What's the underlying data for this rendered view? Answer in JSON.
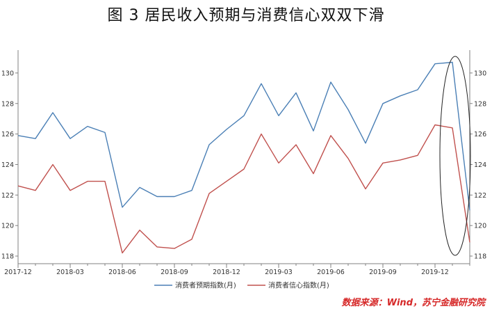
{
  "title": "图 3    居民收入预期与消费信心双双下滑",
  "source": "数据来源：Wind，苏宁金融研究院",
  "colors": {
    "expectation": "#4a7fb5",
    "confidence": "#c0504d",
    "axis": "#808080",
    "ellipse": "#222222"
  },
  "chart_data": {
    "type": "line",
    "title": "",
    "xlabel": "",
    "ylabel": "",
    "x": [
      "2017-12",
      "2018-01",
      "2018-02",
      "2018-03",
      "2018-04",
      "2018-05",
      "2018-06",
      "2018-07",
      "2018-08",
      "2018-09",
      "2018-10",
      "2018-11",
      "2018-12",
      "2019-01",
      "2019-02",
      "2019-03",
      "2019-04",
      "2019-05",
      "2019-06",
      "2019-07",
      "2019-08",
      "2019-09",
      "2019-10",
      "2019-11",
      "2019-12",
      "2020-01",
      "2020-02"
    ],
    "x_tick_labels": [
      "2017-12",
      "2018-03",
      "2018-06",
      "2018-09",
      "2018-12",
      "2019-03",
      "2019-06",
      "2019-09",
      "2019-12"
    ],
    "y_tick_labels": [
      "118",
      "120",
      "122",
      "124",
      "126",
      "128",
      "130"
    ],
    "ylim": [
      117.5,
      131.5
    ],
    "grid": false,
    "legend_position": "bottom",
    "series": [
      {
        "name": "消费者预期指数(月)",
        "values": [
          125.9,
          125.7,
          127.4,
          125.7,
          126.5,
          126.1,
          121.2,
          122.5,
          121.9,
          121.9,
          122.3,
          125.3,
          126.3,
          127.2,
          129.3,
          127.2,
          128.7,
          126.2,
          129.4,
          127.6,
          125.4,
          128.0,
          128.5,
          128.9,
          130.6,
          130.7,
          121.0
        ]
      },
      {
        "name": "消费者信心指数(月)",
        "values": [
          122.6,
          122.3,
          124.0,
          122.3,
          122.9,
          122.9,
          118.2,
          119.7,
          118.6,
          118.5,
          119.1,
          122.1,
          122.9,
          123.7,
          126.0,
          124.1,
          125.3,
          123.4,
          125.9,
          124.4,
          122.4,
          124.1,
          124.3,
          124.6,
          126.6,
          126.4,
          118.9
        ]
      }
    ],
    "annotations": [
      "ellipse highlighting last three months"
    ]
  }
}
